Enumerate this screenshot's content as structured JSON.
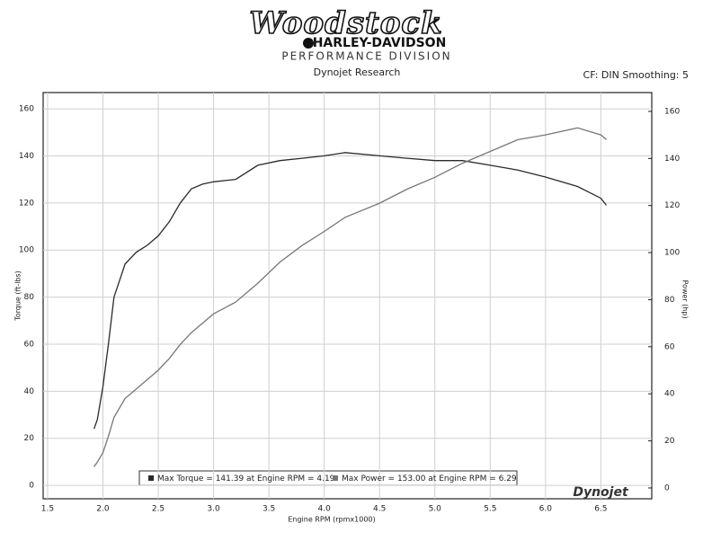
{
  "header": {
    "brand": "Woodstock",
    "brand_line": "HARLEY-DAVIDSON",
    "division": "PERFORMANCE DIVISION",
    "subtitle": "Dynojet Research",
    "settings": "CF: DIN Smoothing: 5",
    "watermark": "Dynojet"
  },
  "chart_data": {
    "type": "line",
    "x_label": "Engine RPM (rpmx1000)",
    "y_label": "Torque (ft-lbs)",
    "y2_label": "Power (hp)",
    "x": [
      1.92,
      1.95,
      2.0,
      2.05,
      2.1,
      2.2,
      2.3,
      2.4,
      2.5,
      2.6,
      2.7,
      2.8,
      2.9,
      3.0,
      3.2,
      3.4,
      3.6,
      3.8,
      4.0,
      4.19,
      4.5,
      4.75,
      5.0,
      5.25,
      5.5,
      5.75,
      6.0,
      6.29,
      6.5,
      6.55
    ],
    "series": [
      {
        "name": "Max Torque = 141.39 at Engine RPM = 4.19",
        "color": "#2a2a2a",
        "values": [
          24,
          28,
          42,
          60,
          80,
          94,
          99,
          102,
          106,
          112,
          120,
          126,
          128,
          129,
          130,
          136,
          138,
          139,
          140,
          141.4,
          140,
          139,
          138,
          138,
          136,
          134,
          131,
          127,
          122,
          119
        ]
      },
      {
        "name": "Max Power = 153.00 at Engine RPM = 6.29",
        "color": "#777777",
        "axis": "y2",
        "values": [
          9,
          11,
          15,
          22,
          30,
          38,
          42,
          46,
          50,
          55,
          61,
          66,
          70,
          74,
          79,
          87,
          96,
          103,
          109,
          115,
          121,
          127,
          132,
          138,
          143,
          148,
          150,
          153,
          150,
          148
        ]
      }
    ],
    "xlim": [
      1.46,
      6.96
    ],
    "xticks": [
      1.5,
      {
        "value": 2,
        "label": "2.0"
      },
      2.5,
      {
        "value": 3,
        "label": "3.0"
      },
      3.5,
      {
        "value": 4,
        "label": "4.0"
      },
      4.5,
      {
        "value": 5,
        "label": "5.0"
      },
      5.5,
      {
        "value": 6,
        "label": "6.0"
      },
      6.5
    ],
    "ylim": [
      -5.7,
      166.9
    ],
    "yticks": [
      0,
      20,
      40,
      60,
      80,
      100,
      120,
      140,
      160
    ],
    "y2lim": [
      -4.6,
      168.0
    ],
    "y2ticks": [
      0,
      20,
      40,
      60,
      80,
      100,
      120,
      140,
      160
    ],
    "grid": true
  }
}
